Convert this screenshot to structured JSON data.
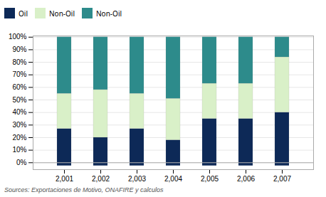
{
  "chart_data": {
    "type": "bar",
    "stacked": true,
    "categories": [
      "2,001",
      "2,002",
      "2,003",
      "2,004",
      "2,005",
      "2,006",
      "2,007"
    ],
    "series": [
      {
        "name": "Oil",
        "color": "#0d2957",
        "values": [
          0.27,
          0.2,
          0.27,
          0.18,
          0.35,
          0.35,
          0.4
        ]
      },
      {
        "name": "Non-Oil",
        "color": "#d9f0c8",
        "values": [
          0.28,
          0.38,
          0.28,
          0.33,
          0.28,
          0.28,
          0.44
        ]
      },
      {
        "name": "Non-Oil",
        "color": "#2d8b8b",
        "values": [
          0.45,
          0.42,
          0.45,
          0.49,
          0.37,
          0.37,
          0.16
        ]
      },
      {
        "color": "#0d2957",
        "values": [
          -0.025,
          -0.025,
          -0.025,
          -0.025,
          -0.025,
          -0.025,
          -0.025
        ]
      }
    ],
    "ylim": [
      -0.055,
      1.01
    ],
    "yticks": [
      {
        "value": 0.0,
        "label": "0%"
      },
      {
        "value": 0.1,
        "label": "10%"
      },
      {
        "value": 0.2,
        "label": "20%"
      },
      {
        "value": 0.3,
        "label": "30%"
      },
      {
        "value": 0.4,
        "label": "40%"
      },
      {
        "value": 0.5,
        "label": "50%"
      },
      {
        "value": 0.6,
        "label": "60%"
      },
      {
        "value": 0.7,
        "label": "70%"
      },
      {
        "value": 0.8,
        "label": "80%"
      },
      {
        "value": 0.9,
        "label": "90%"
      },
      {
        "value": 1.0,
        "label": "100%"
      }
    ],
    "grid": true,
    "legend": "upper left",
    "annotations": [
      "Sources: Exportaciones de Motivo, ONAFIRE y calculos"
    ]
  }
}
